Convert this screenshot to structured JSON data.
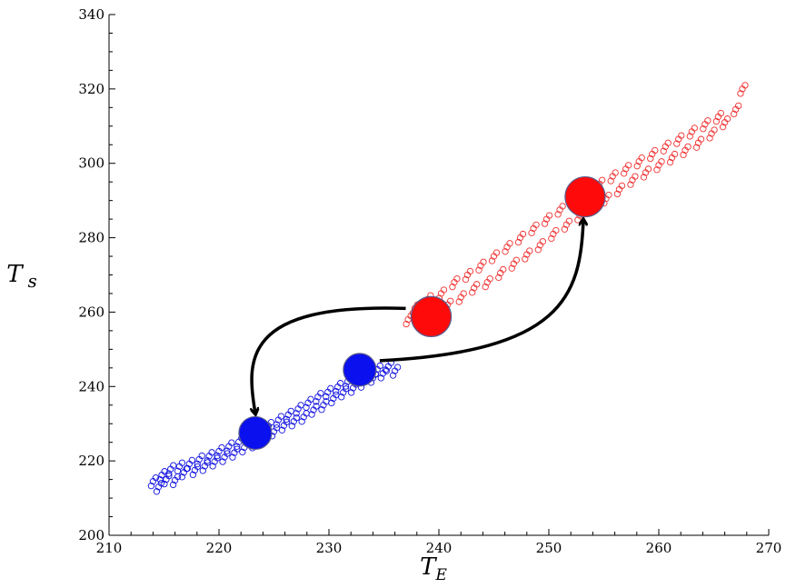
{
  "chart_data": {
    "type": "scatter",
    "title": "",
    "xlabel": "T",
    "xlabel_sub": "E",
    "ylabel": "T",
    "ylabel_sub": "s",
    "xlim": [
      210,
      270
    ],
    "ylim": [
      200,
      340
    ],
    "x_ticks": [
      210,
      220,
      230,
      240,
      250,
      260,
      270
    ],
    "y_ticks": [
      200,
      220,
      240,
      260,
      280,
      300,
      320,
      340
    ],
    "grid": false,
    "legend": "none",
    "series": [
      {
        "color": "#1010e0",
        "marker": "open-circle",
        "x_range": [
          214,
          236.5
        ],
        "points": [
          [
            214.0,
            214.5
          ],
          [
            214.5,
            213.0
          ],
          [
            214.8,
            216.2
          ],
          [
            215.2,
            215.0
          ],
          [
            215.6,
            217.8
          ],
          [
            216.0,
            214.8
          ],
          [
            216.4,
            218.5
          ],
          [
            216.8,
            216.9
          ],
          [
            217.3,
            219.2
          ],
          [
            217.8,
            217.5
          ],
          [
            218.2,
            220.4
          ],
          [
            218.7,
            218.6
          ],
          [
            219.1,
            221.3
          ],
          [
            219.6,
            219.8
          ],
          [
            220.0,
            222.6
          ],
          [
            220.5,
            221.0
          ],
          [
            220.9,
            223.9
          ],
          [
            221.4,
            222.2
          ],
          [
            221.8,
            225.1
          ],
          [
            222.3,
            223.6
          ],
          [
            222.7,
            226.2
          ],
          [
            223.2,
            224.7
          ],
          [
            223.6,
            227.8
          ],
          [
            224.1,
            226.3
          ],
          [
            224.5,
            229.4
          ],
          [
            225.0,
            227.9
          ],
          [
            225.4,
            231.0
          ],
          [
            225.9,
            229.5
          ],
          [
            226.3,
            232.4
          ],
          [
            226.8,
            230.6
          ],
          [
            227.2,
            234.0
          ],
          [
            227.7,
            231.8
          ],
          [
            228.1,
            235.6
          ],
          [
            228.6,
            233.7
          ],
          [
            229.0,
            237.2
          ],
          [
            229.5,
            235.0
          ],
          [
            229.9,
            238.5
          ],
          [
            230.4,
            236.8
          ],
          [
            230.8,
            239.9
          ],
          [
            231.3,
            238.4
          ],
          [
            231.7,
            241.3
          ],
          [
            232.2,
            239.6
          ],
          [
            232.6,
            242.5
          ],
          [
            233.1,
            241.0
          ],
          [
            233.5,
            243.6
          ],
          [
            234.0,
            242.3
          ],
          [
            234.4,
            244.6
          ],
          [
            234.9,
            243.5
          ],
          [
            235.4,
            245.4
          ],
          [
            236.0,
            244.2
          ]
        ]
      },
      {
        "color": "#f03030",
        "marker": "open-circle",
        "x_range": [
          237,
          268
        ],
        "points": [
          [
            237.2,
            258.0
          ],
          [
            237.8,
            261.0
          ],
          [
            238.4,
            257.0
          ],
          [
            239.0,
            263.5
          ],
          [
            239.6,
            260.0
          ],
          [
            240.2,
            265.0
          ],
          [
            240.8,
            262.0
          ],
          [
            241.4,
            268.0
          ],
          [
            242.0,
            264.0
          ],
          [
            242.6,
            270.0
          ],
          [
            243.2,
            266.5
          ],
          [
            243.8,
            272.5
          ],
          [
            244.4,
            268.0
          ],
          [
            245.0,
            275.0
          ],
          [
            245.6,
            270.5
          ],
          [
            246.2,
            277.5
          ],
          [
            246.8,
            273.0
          ],
          [
            247.4,
            280.0
          ],
          [
            248.0,
            275.5
          ],
          [
            248.6,
            282.5
          ],
          [
            249.2,
            278.0
          ],
          [
            249.8,
            285.0
          ],
          [
            250.4,
            281.0
          ],
          [
            251.0,
            287.5
          ],
          [
            251.6,
            283.5
          ],
          [
            252.2,
            289.5
          ],
          [
            252.8,
            286.0
          ],
          [
            253.4,
            292.0
          ],
          [
            254.0,
            288.0
          ],
          [
            254.6,
            294.5
          ],
          [
            255.2,
            290.5
          ],
          [
            255.8,
            296.5
          ],
          [
            256.4,
            293.0
          ],
          [
            257.0,
            298.5
          ],
          [
            257.6,
            295.5
          ],
          [
            258.2,
            300.5
          ],
          [
            258.8,
            297.5
          ],
          [
            259.4,
            302.5
          ],
          [
            260.0,
            299.5
          ],
          [
            260.6,
            304.5
          ],
          [
            261.2,
            301.5
          ],
          [
            261.8,
            306.5
          ],
          [
            262.4,
            303.5
          ],
          [
            263.0,
            308.5
          ],
          [
            263.6,
            305.5
          ],
          [
            264.2,
            310.5
          ],
          [
            264.8,
            308.0
          ],
          [
            265.4,
            312.5
          ],
          [
            266.0,
            311.0
          ],
          [
            267.0,
            314.5
          ],
          [
            267.6,
            320.0
          ]
        ]
      }
    ],
    "highlights": [
      {
        "x": 223.3,
        "y": 227.5,
        "color": "#0b10ee"
      },
      {
        "x": 232.8,
        "y": 244.5,
        "color": "#0b10ee"
      },
      {
        "x": 239.3,
        "y": 258.8,
        "color": "#ff0a0a"
      },
      {
        "x": 253.3,
        "y": 291.0,
        "color": "#ff0a0a"
      }
    ],
    "arrows": [
      {
        "from": [
          239.3,
          258.8
        ],
        "to": [
          223.3,
          227.5
        ],
        "color": "#000000"
      },
      {
        "from": [
          232.8,
          244.5
        ],
        "to": [
          253.3,
          291.0
        ],
        "color": "#000000"
      }
    ]
  }
}
